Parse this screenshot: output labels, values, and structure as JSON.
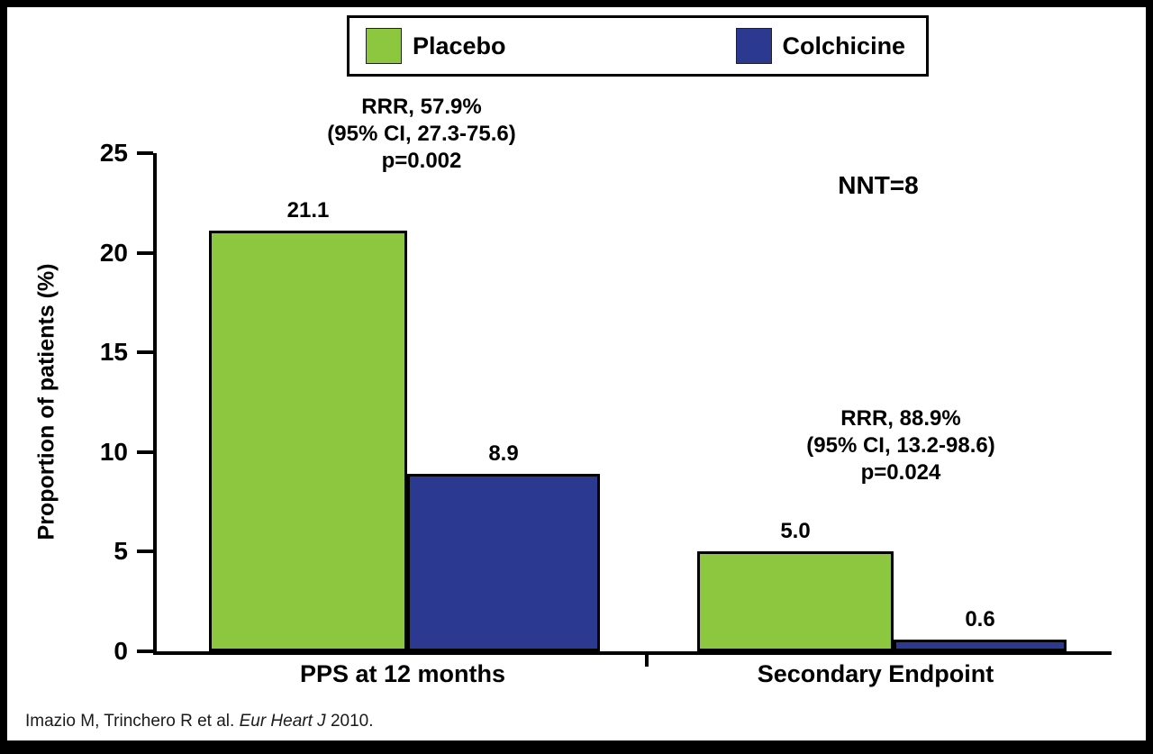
{
  "legend": {
    "items": [
      {
        "label": "Placebo",
        "color": "#8DC63F"
      },
      {
        "label": "Colchicine",
        "color": "#2B3990"
      }
    ]
  },
  "chart_data": {
    "type": "bar",
    "title": "",
    "xlabel": "",
    "ylabel": "Proportion of patients (%)",
    "ylim": [
      0,
      25
    ],
    "yticks": [
      0,
      5,
      10,
      15,
      20,
      25
    ],
    "grid": false,
    "legend_position": "top",
    "categories": [
      "PPS at 12 months",
      "Secondary Endpoint"
    ],
    "series": [
      {
        "name": "Placebo",
        "color": "#8DC63F",
        "values": [
          21.1,
          5.0
        ],
        "labels": [
          "21.1",
          "5.0"
        ]
      },
      {
        "name": "Colchicine",
        "color": "#2B3990",
        "values": [
          8.9,
          0.6
        ],
        "labels": [
          "8.9",
          "0.6"
        ]
      }
    ],
    "annotations": [
      {
        "lines": [
          "RRR, 57.9%",
          "(95% CI, 27.3-75.6)",
          "p=0.002"
        ]
      },
      {
        "text": "NNT=8"
      },
      {
        "lines": [
          "RRR, 88.9%",
          "(95% CI, 13.2-98.6)",
          "p=0.024"
        ]
      }
    ]
  },
  "footer": {
    "citation_prefix": "Imazio M, Trinchero R et al. ",
    "citation_italic": "Eur Heart J",
    "citation_suffix": " 2010."
  }
}
